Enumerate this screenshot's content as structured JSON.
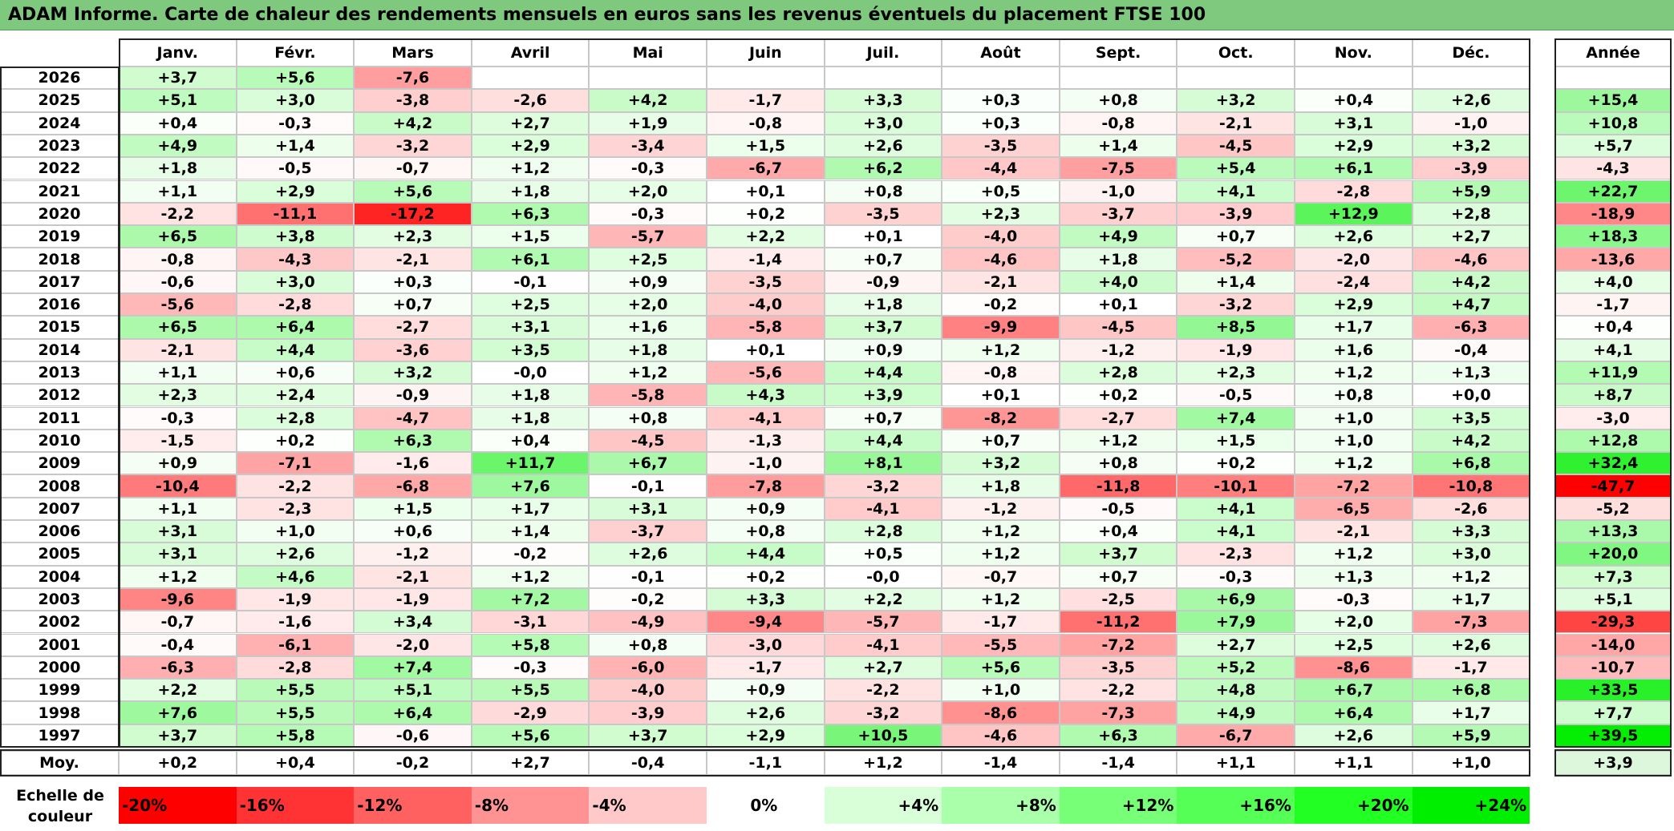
{
  "title": "ADAM Informe. Carte de chaleur des rendements mensuels en euros sans les revenus éventuels du placement FTSE 100",
  "months": [
    "Janv.",
    "Févr.",
    "Mars",
    "Avril",
    "Mai",
    "Juin",
    "Juil.",
    "Août",
    "Sept.",
    "Oct.",
    "Nov.",
    "Déc."
  ],
  "year_header": "Année",
  "avg_label": "Moy.",
  "scale_label_line1": "Echelle de",
  "scale_label_line2": "couleur",
  "chart_data": {
    "type": "heatmap",
    "title": "ADAM Informe. Carte de chaleur des rendements mensuels en euros sans les revenus éventuels du placement FTSE 100",
    "columns": [
      "Janv.",
      "Févr.",
      "Mars",
      "Avril",
      "Mai",
      "Juin",
      "Juil.",
      "Août",
      "Sept.",
      "Oct.",
      "Nov.",
      "Déc."
    ],
    "rows": [
      {
        "year": "2026",
        "values": [
          "+3,7",
          "+5,6",
          "-7,6",
          "",
          "",
          "",
          "",
          "",
          "",
          "",
          "",
          ""
        ],
        "annual": ""
      },
      {
        "year": "2025",
        "values": [
          "+5,1",
          "+3,0",
          "-3,8",
          "-2,6",
          "+4,2",
          "-1,7",
          "+3,3",
          "+0,3",
          "+0,8",
          "+3,2",
          "+0,4",
          "+2,6"
        ],
        "annual": "+15,4"
      },
      {
        "year": "2024",
        "values": [
          "+0,4",
          "-0,3",
          "+4,2",
          "+2,7",
          "+1,9",
          "-0,8",
          "+3,0",
          "+0,3",
          "-0,8",
          "-2,1",
          "+3,1",
          "-1,0"
        ],
        "annual": "+10,8"
      },
      {
        "year": "2023",
        "values": [
          "+4,9",
          "+1,4",
          "-3,2",
          "+2,9",
          "-3,4",
          "+1,5",
          "+2,6",
          "-3,5",
          "+1,4",
          "-4,5",
          "+2,9",
          "+3,2"
        ],
        "annual": "+5,7"
      },
      {
        "year": "2022",
        "values": [
          "+1,8",
          "-0,5",
          "-0,7",
          "+1,2",
          "-0,3",
          "-6,7",
          "+6,2",
          "-4,4",
          "-7,5",
          "+5,4",
          "+6,1",
          "-3,9"
        ],
        "annual": "-4,3"
      },
      {
        "year": "2021",
        "values": [
          "+1,1",
          "+2,9",
          "+5,6",
          "+1,8",
          "+2,0",
          "+0,1",
          "+0,8",
          "+0,5",
          "-1,0",
          "+4,1",
          "-2,8",
          "+5,9"
        ],
        "annual": "+22,7"
      },
      {
        "year": "2020",
        "values": [
          "-2,2",
          "-11,1",
          "-17,2",
          "+6,3",
          "-0,3",
          "+0,2",
          "-3,5",
          "+2,3",
          "-3,7",
          "-3,9",
          "+12,9",
          "+2,8"
        ],
        "annual": "-18,9"
      },
      {
        "year": "2019",
        "values": [
          "+6,5",
          "+3,8",
          "+2,3",
          "+1,5",
          "-5,7",
          "+2,2",
          "+0,1",
          "-4,0",
          "+4,9",
          "+0,7",
          "+2,6",
          "+2,7"
        ],
        "annual": "+18,3"
      },
      {
        "year": "2018",
        "values": [
          "-0,8",
          "-4,3",
          "-2,1",
          "+6,1",
          "+2,5",
          "-1,4",
          "+0,7",
          "-4,6",
          "+1,8",
          "-5,2",
          "-2,0",
          "-4,6"
        ],
        "annual": "-13,6"
      },
      {
        "year": "2017",
        "values": [
          "-0,6",
          "+3,0",
          "+0,3",
          "-0,1",
          "+0,9",
          "-3,5",
          "-0,9",
          "-2,1",
          "+4,0",
          "+1,4",
          "-2,4",
          "+4,2"
        ],
        "annual": "+4,0"
      },
      {
        "year": "2016",
        "values": [
          "-5,6",
          "-2,8",
          "+0,7",
          "+2,5",
          "+2,0",
          "-4,0",
          "+1,8",
          "-0,2",
          "+0,1",
          "-3,2",
          "+2,9",
          "+4,7"
        ],
        "annual": "-1,7"
      },
      {
        "year": "2015",
        "values": [
          "+6,5",
          "+6,4",
          "-2,7",
          "+3,1",
          "+1,6",
          "-5,8",
          "+3,7",
          "-9,9",
          "-4,5",
          "+8,5",
          "+1,7",
          "-6,3"
        ],
        "annual": "+0,4"
      },
      {
        "year": "2014",
        "values": [
          "-2,1",
          "+4,4",
          "-3,6",
          "+3,5",
          "+1,8",
          "+0,1",
          "+0,9",
          "+1,2",
          "-1,2",
          "-1,9",
          "+1,6",
          "-0,4"
        ],
        "annual": "+4,1"
      },
      {
        "year": "2013",
        "values": [
          "+1,1",
          "+0,6",
          "+3,2",
          "-0,0",
          "+1,2",
          "-5,6",
          "+4,4",
          "-0,8",
          "+2,8",
          "+2,3",
          "+1,2",
          "+1,3"
        ],
        "annual": "+11,9"
      },
      {
        "year": "2012",
        "values": [
          "+2,3",
          "+2,4",
          "-0,9",
          "+1,8",
          "-5,8",
          "+4,3",
          "+3,9",
          "+0,1",
          "+0,2",
          "-0,5",
          "+0,8",
          "+0,0"
        ],
        "annual": "+8,7"
      },
      {
        "year": "2011",
        "values": [
          "-0,3",
          "+2,8",
          "-4,7",
          "+1,8",
          "+0,8",
          "-4,1",
          "+0,7",
          "-8,2",
          "-2,7",
          "+7,4",
          "+1,0",
          "+3,5"
        ],
        "annual": "-3,0"
      },
      {
        "year": "2010",
        "values": [
          "-1,5",
          "+0,2",
          "+6,3",
          "+0,4",
          "-4,5",
          "-1,3",
          "+4,4",
          "+0,7",
          "+1,2",
          "+1,5",
          "+1,0",
          "+4,2"
        ],
        "annual": "+12,8"
      },
      {
        "year": "2009",
        "values": [
          "+0,9",
          "-7,1",
          "-1,6",
          "+11,7",
          "+6,7",
          "-1,0",
          "+8,1",
          "+3,2",
          "+0,8",
          "+0,2",
          "+1,2",
          "+6,8"
        ],
        "annual": "+32,4"
      },
      {
        "year": "2008",
        "values": [
          "-10,4",
          "-2,2",
          "-6,8",
          "+7,6",
          "-0,1",
          "-7,8",
          "-3,2",
          "+1,8",
          "-11,8",
          "-10,1",
          "-7,2",
          "-10,8"
        ],
        "annual": "-47,7"
      },
      {
        "year": "2007",
        "values": [
          "+1,1",
          "-2,3",
          "+1,5",
          "+1,7",
          "+3,1",
          "+0,9",
          "-4,1",
          "-1,2",
          "-0,5",
          "+4,1",
          "-6,5",
          "-2,6"
        ],
        "annual": "-5,2"
      },
      {
        "year": "2006",
        "values": [
          "+3,1",
          "+1,0",
          "+0,6",
          "+1,4",
          "-3,7",
          "+0,8",
          "+2,8",
          "+1,2",
          "+0,4",
          "+4,1",
          "-2,1",
          "+3,3"
        ],
        "annual": "+13,3"
      },
      {
        "year": "2005",
        "values": [
          "+3,1",
          "+2,6",
          "-1,2",
          "-0,2",
          "+2,6",
          "+4,4",
          "+0,5",
          "+1,2",
          "+3,7",
          "-2,3",
          "+1,2",
          "+3,0"
        ],
        "annual": "+20,0"
      },
      {
        "year": "2004",
        "values": [
          "+1,2",
          "+4,6",
          "-2,1",
          "+1,2",
          "-0,1",
          "+0,2",
          "-0,0",
          "-0,7",
          "+0,7",
          "-0,3",
          "+1,3",
          "+1,2"
        ],
        "annual": "+7,3"
      },
      {
        "year": "2003",
        "values": [
          "-9,6",
          "-1,9",
          "-1,9",
          "+7,2",
          "-0,2",
          "+3,3",
          "+2,2",
          "+1,2",
          "-2,5",
          "+6,9",
          "-0,3",
          "+1,7"
        ],
        "annual": "+5,1"
      },
      {
        "year": "2002",
        "values": [
          "-0,7",
          "-1,6",
          "+3,4",
          "-3,1",
          "-4,9",
          "-9,4",
          "-5,7",
          "-1,7",
          "-11,2",
          "+7,9",
          "+2,0",
          "-7,3"
        ],
        "annual": "-29,3"
      },
      {
        "year": "2001",
        "values": [
          "-0,4",
          "-6,1",
          "-2,0",
          "+5,8",
          "+0,8",
          "-3,0",
          "-4,1",
          "-5,5",
          "-7,2",
          "+2,7",
          "+2,5",
          "+2,6"
        ],
        "annual": "-14,0"
      },
      {
        "year": "2000",
        "values": [
          "-6,3",
          "-2,8",
          "+7,4",
          "-0,3",
          "-6,0",
          "-1,7",
          "+2,7",
          "+5,6",
          "-3,5",
          "+5,2",
          "-8,6",
          "-1,7"
        ],
        "annual": "-10,7"
      },
      {
        "year": "1999",
        "values": [
          "+2,2",
          "+5,5",
          "+5,1",
          "+5,5",
          "-4,0",
          "+0,9",
          "-2,2",
          "+1,0",
          "-2,2",
          "+4,8",
          "+6,7",
          "+6,8"
        ],
        "annual": "+33,5"
      },
      {
        "year": "1998",
        "values": [
          "+7,6",
          "+5,5",
          "+6,4",
          "-2,9",
          "-3,9",
          "+2,6",
          "-3,2",
          "-8,6",
          "-7,3",
          "+4,9",
          "+6,4",
          "+1,7"
        ],
        "annual": "+7,7"
      },
      {
        "year": "1997",
        "values": [
          "+3,7",
          "+5,8",
          "-0,6",
          "+5,6",
          "+3,7",
          "+2,9",
          "+10,5",
          "-4,6",
          "+6,3",
          "-6,7",
          "+2,6",
          "+5,9"
        ],
        "annual": "+39,5"
      }
    ],
    "averages": [
      "+0,2",
      "+0,4",
      "-0,2",
      "+2,7",
      "-0,4",
      "-1,1",
      "+1,2",
      "-1,4",
      "-1,4",
      "+1,1",
      "+1,1",
      "+1,0"
    ],
    "average_annual": "+3,9",
    "color_scale": [
      {
        "label": "-20%",
        "color": "#ff0000"
      },
      {
        "label": "-16%",
        "color": "#ff3333"
      },
      {
        "label": "-12%",
        "color": "#ff6161"
      },
      {
        "label": "-8%",
        "color": "#ff9393"
      },
      {
        "label": "-4%",
        "color": "#ffc9c9"
      },
      {
        "label": "0%",
        "color": "#ffffff"
      },
      {
        "label": "+4%",
        "color": "#d9ffd9"
      },
      {
        "label": "+8%",
        "color": "#aaffaa"
      },
      {
        "label": "+12%",
        "color": "#77ff77"
      },
      {
        "label": "+16%",
        "color": "#55ff55"
      },
      {
        "label": "+20%",
        "color": "#22ff22"
      },
      {
        "label": "+24%",
        "color": "#00ee00"
      }
    ]
  }
}
